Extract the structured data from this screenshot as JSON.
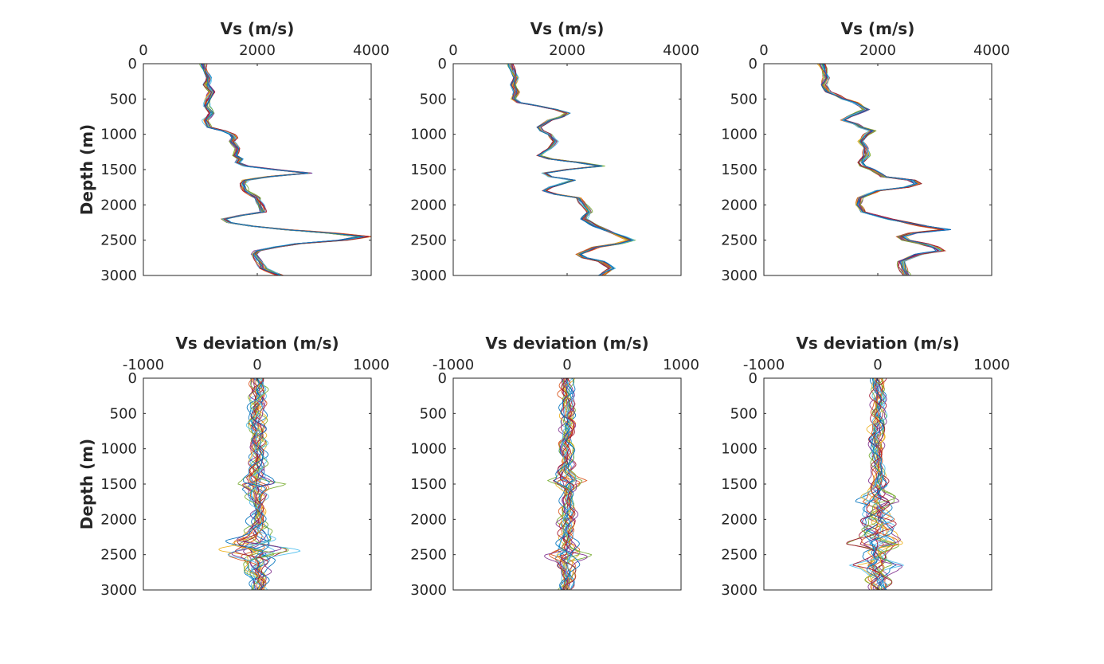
{
  "chart_data": [
    {
      "type": "line",
      "title": "",
      "xlabel": "Vs (m/s)",
      "ylabel": "Depth (m)",
      "xlim": [
        0,
        4000
      ],
      "ylim": [
        3000,
        0
      ],
      "xticks": [
        "0",
        "2000",
        "4000"
      ],
      "yticks": [
        "0",
        "500",
        "1000",
        "1500",
        "2000",
        "2500",
        "3000"
      ],
      "grid": false,
      "legend": "none",
      "profile": {
        "depth": [
          0,
          100,
          200,
          300,
          400,
          500,
          600,
          700,
          800,
          900,
          950,
          1000,
          1050,
          1100,
          1200,
          1300,
          1350,
          1400,
          1450,
          1500,
          1550,
          1600,
          1650,
          1700,
          1800,
          1900,
          2000,
          2100,
          2150,
          2200,
          2250,
          2300,
          2350,
          2400,
          2450,
          2500,
          2550,
          2600,
          2650,
          2700,
          2800,
          2900,
          3000
        ],
        "vs": [
          1050,
          1100,
          1150,
          1100,
          1200,
          1150,
          1100,
          1200,
          1100,
          1150,
          1400,
          1550,
          1600,
          1550,
          1650,
          1600,
          1700,
          1650,
          1800,
          2300,
          2900,
          2200,
          1800,
          1750,
          1800,
          2000,
          2050,
          2100,
          1700,
          1400,
          1500,
          1900,
          2500,
          3300,
          3900,
          3500,
          2700,
          2300,
          2000,
          1950,
          2050,
          2100,
          2400
        ]
      },
      "spread_m_s": 60
    },
    {
      "type": "line",
      "title": "",
      "xlabel": "Vs (m/s)",
      "ylabel": "",
      "xlim": [
        0,
        4000
      ],
      "ylim": [
        3000,
        0
      ],
      "xticks": [
        "0",
        "2000",
        "4000"
      ],
      "yticks": [
        "0",
        "500",
        "1000",
        "1500",
        "2000",
        "2500",
        "3000"
      ],
      "grid": false,
      "legend": "none",
      "profile": {
        "depth": [
          0,
          100,
          200,
          300,
          400,
          500,
          550,
          600,
          650,
          700,
          750,
          800,
          900,
          950,
          1000,
          1100,
          1200,
          1300,
          1350,
          1400,
          1450,
          1500,
          1550,
          1600,
          1650,
          1700,
          1750,
          1800,
          1850,
          1900,
          2000,
          2100,
          2200,
          2300,
          2400,
          2500,
          2550,
          2600,
          2700,
          2750,
          2800,
          2900,
          3000
        ],
        "vs": [
          1000,
          1050,
          1100,
          1050,
          1100,
          1050,
          1150,
          1500,
          1800,
          2000,
          1900,
          1700,
          1500,
          1550,
          1700,
          1800,
          1700,
          1500,
          1700,
          2200,
          2600,
          2000,
          1600,
          1700,
          2100,
          1900,
          1700,
          1600,
          1800,
          2200,
          2300,
          2400,
          2300,
          2500,
          2800,
          3100,
          2900,
          2500,
          2200,
          2300,
          2600,
          2800,
          2600
        ]
      },
      "spread_m_s": 50
    },
    {
      "type": "line",
      "title": "",
      "xlabel": "Vs (m/s)",
      "ylabel": "",
      "xlim": [
        0,
        4000
      ],
      "ylim": [
        3000,
        0
      ],
      "xticks": [
        "0",
        "2000",
        "4000"
      ],
      "yticks": [
        "0",
        "500",
        "1000",
        "1500",
        "2000",
        "2500",
        "3000"
      ],
      "grid": false,
      "legend": "none",
      "profile": {
        "depth": [
          0,
          100,
          200,
          300,
          400,
          450,
          500,
          550,
          600,
          650,
          700,
          750,
          800,
          850,
          900,
          950,
          1000,
          1100,
          1200,
          1300,
          1400,
          1450,
          1500,
          1550,
          1600,
          1650,
          1700,
          1750,
          1800,
          1900,
          2000,
          2100,
          2200,
          2300,
          2350,
          2400,
          2450,
          2500,
          2550,
          2600,
          2650,
          2700,
          2800,
          2900,
          3000
        ],
        "vs": [
          1000,
          1050,
          1100,
          1050,
          1150,
          1300,
          1400,
          1600,
          1700,
          1800,
          1650,
          1500,
          1400,
          1600,
          1700,
          1900,
          1800,
          1700,
          1800,
          1800,
          1700,
          1750,
          1900,
          2000,
          2100,
          2600,
          2700,
          2500,
          2000,
          1700,
          1650,
          1750,
          2200,
          2800,
          3200,
          2600,
          2400,
          2500,
          2800,
          3000,
          3100,
          2700,
          2400,
          2450,
          2500
        ]
      },
      "spread_m_s": 60
    },
    {
      "type": "line",
      "title": "",
      "xlabel": "Vs deviation (m/s)",
      "ylabel": "Depth (m)",
      "xlim": [
        -1000,
        1000
      ],
      "ylim": [
        3000,
        0
      ],
      "xticks": [
        "-1000",
        "0",
        "1000"
      ],
      "yticks": [
        "0",
        "500",
        "1000",
        "1500",
        "2000",
        "2500",
        "3000"
      ],
      "grid": false,
      "legend": "none",
      "envelope": {
        "depth": [
          0,
          200,
          400,
          600,
          800,
          1000,
          1200,
          1350,
          1450,
          1500,
          1550,
          1600,
          1700,
          1800,
          2000,
          2100,
          2200,
          2250,
          2300,
          2350,
          2400,
          2450,
          2500,
          2550,
          2600,
          2700,
          2800,
          2900,
          3000
        ],
        "amplitude": [
          100,
          110,
          100,
          110,
          100,
          110,
          100,
          100,
          180,
          300,
          200,
          120,
          100,
          90,
          100,
          120,
          150,
          200,
          300,
          350,
          400,
          420,
          350,
          250,
          200,
          150,
          120,
          110,
          100
        ]
      }
    },
    {
      "type": "line",
      "title": "",
      "xlabel": "Vs deviation (m/s)",
      "ylabel": "",
      "xlim": [
        -1000,
        1000
      ],
      "ylim": [
        3000,
        0
      ],
      "xticks": [
        "-1000",
        "0",
        "1000"
      ],
      "yticks": [
        "0",
        "500",
        "1000",
        "1500",
        "2000",
        "2500",
        "3000"
      ],
      "grid": false,
      "legend": "none",
      "envelope": {
        "depth": [
          0,
          200,
          400,
          600,
          800,
          1000,
          1200,
          1300,
          1400,
          1450,
          1500,
          1550,
          1600,
          1800,
          2000,
          2200,
          2400,
          2450,
          2500,
          2550,
          2600,
          2800,
          3000
        ],
        "amplitude": [
          80,
          90,
          90,
          100,
          90,
          100,
          90,
          90,
          140,
          220,
          150,
          100,
          90,
          90,
          100,
          100,
          140,
          200,
          240,
          180,
          120,
          100,
          90
        ]
      }
    },
    {
      "type": "line",
      "title": "",
      "xlabel": "Vs deviation (m/s)",
      "ylabel": "",
      "xlim": [
        -1000,
        1000
      ],
      "ylim": [
        3000,
        0
      ],
      "xticks": [
        "-1000",
        "0",
        "1000"
      ],
      "yticks": [
        "0",
        "500",
        "1000",
        "1500",
        "2000",
        "2500",
        "3000"
      ],
      "grid": false,
      "legend": "none",
      "envelope": {
        "depth": [
          0,
          200,
          400,
          600,
          800,
          1000,
          1200,
          1400,
          1500,
          1600,
          1700,
          1750,
          1800,
          1900,
          2000,
          2100,
          2200,
          2300,
          2350,
          2400,
          2500,
          2600,
          2650,
          2700,
          2800,
          2900,
          3000
        ],
        "amplitude": [
          80,
          90,
          100,
          90,
          100,
          90,
          80,
          90,
          110,
          130,
          200,
          250,
          200,
          180,
          220,
          180,
          200,
          280,
          350,
          250,
          160,
          200,
          290,
          200,
          150,
          130,
          110
        ]
      }
    }
  ]
}
